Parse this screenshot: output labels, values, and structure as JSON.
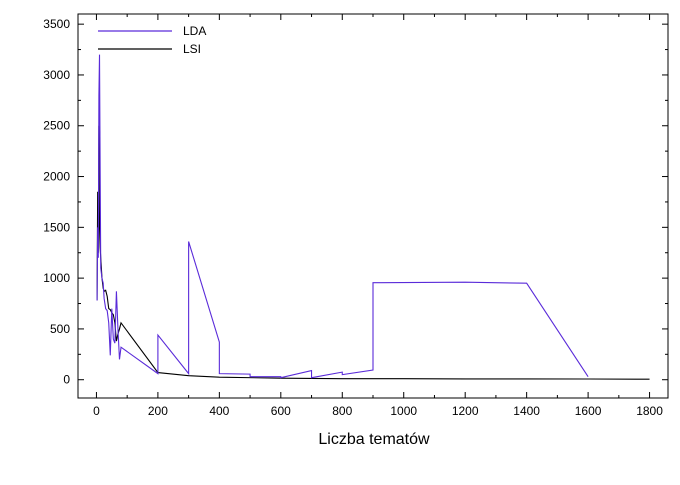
{
  "chart_data": {
    "type": "line",
    "title": "",
    "xlabel": "Liczba tematów",
    "ylabel": "",
    "xlim": [
      -60,
      1860
    ],
    "ylim": [
      -180,
      3600
    ],
    "xticks": [
      0,
      200,
      400,
      600,
      800,
      1000,
      1200,
      1400,
      1600,
      1800
    ],
    "yticks": [
      0,
      500,
      1000,
      1500,
      2000,
      2500,
      3000,
      3500
    ],
    "grid": false,
    "legend_position": "top-left",
    "series": [
      {
        "name": "LDA",
        "color": "#5a2bd9",
        "points": [
          [
            2,
            780
          ],
          [
            4,
            1500
          ],
          [
            6,
            1200
          ],
          [
            8,
            2800
          ],
          [
            10,
            3200
          ],
          [
            12,
            2100
          ],
          [
            14,
            1100
          ],
          [
            18,
            1000
          ],
          [
            22,
            950
          ],
          [
            25,
            800
          ],
          [
            30,
            700
          ],
          [
            35,
            680
          ],
          [
            40,
            560
          ],
          [
            45,
            240
          ],
          [
            50,
            700
          ],
          [
            55,
            400
          ],
          [
            60,
            360
          ],
          [
            65,
            870
          ],
          [
            70,
            500
          ],
          [
            75,
            200
          ],
          [
            80,
            320
          ],
          [
            200,
            60
          ],
          [
            200,
            440
          ],
          [
            300,
            60
          ],
          [
            300,
            1360
          ],
          [
            400,
            370
          ],
          [
            400,
            60
          ],
          [
            500,
            55
          ],
          [
            500,
            30
          ],
          [
            600,
            30
          ],
          [
            600,
            20
          ],
          [
            700,
            90
          ],
          [
            700,
            20
          ],
          [
            800,
            75
          ],
          [
            800,
            50
          ],
          [
            900,
            95
          ],
          [
            900,
            955
          ],
          [
            1200,
            960
          ],
          [
            1400,
            950
          ],
          [
            1600,
            30
          ]
        ]
      },
      {
        "name": "LSI",
        "color": "#000000",
        "points": [
          [
            2,
            780
          ],
          [
            4,
            1850
          ],
          [
            6,
            1250
          ],
          [
            8,
            2500
          ],
          [
            10,
            1500
          ],
          [
            12,
            1300
          ],
          [
            15,
            1150
          ],
          [
            18,
            1000
          ],
          [
            22,
            900
          ],
          [
            25,
            870
          ],
          [
            30,
            880
          ],
          [
            35,
            820
          ],
          [
            40,
            700
          ],
          [
            45,
            690
          ],
          [
            50,
            660
          ],
          [
            55,
            640
          ],
          [
            60,
            560
          ],
          [
            65,
            380
          ],
          [
            70,
            450
          ],
          [
            75,
            500
          ],
          [
            80,
            560
          ],
          [
            200,
            70
          ],
          [
            300,
            40
          ],
          [
            400,
            25
          ],
          [
            600,
            15
          ],
          [
            800,
            10
          ],
          [
            1000,
            10
          ],
          [
            1200,
            8
          ],
          [
            1400,
            8
          ],
          [
            1600,
            7
          ],
          [
            1800,
            5
          ]
        ]
      }
    ]
  }
}
